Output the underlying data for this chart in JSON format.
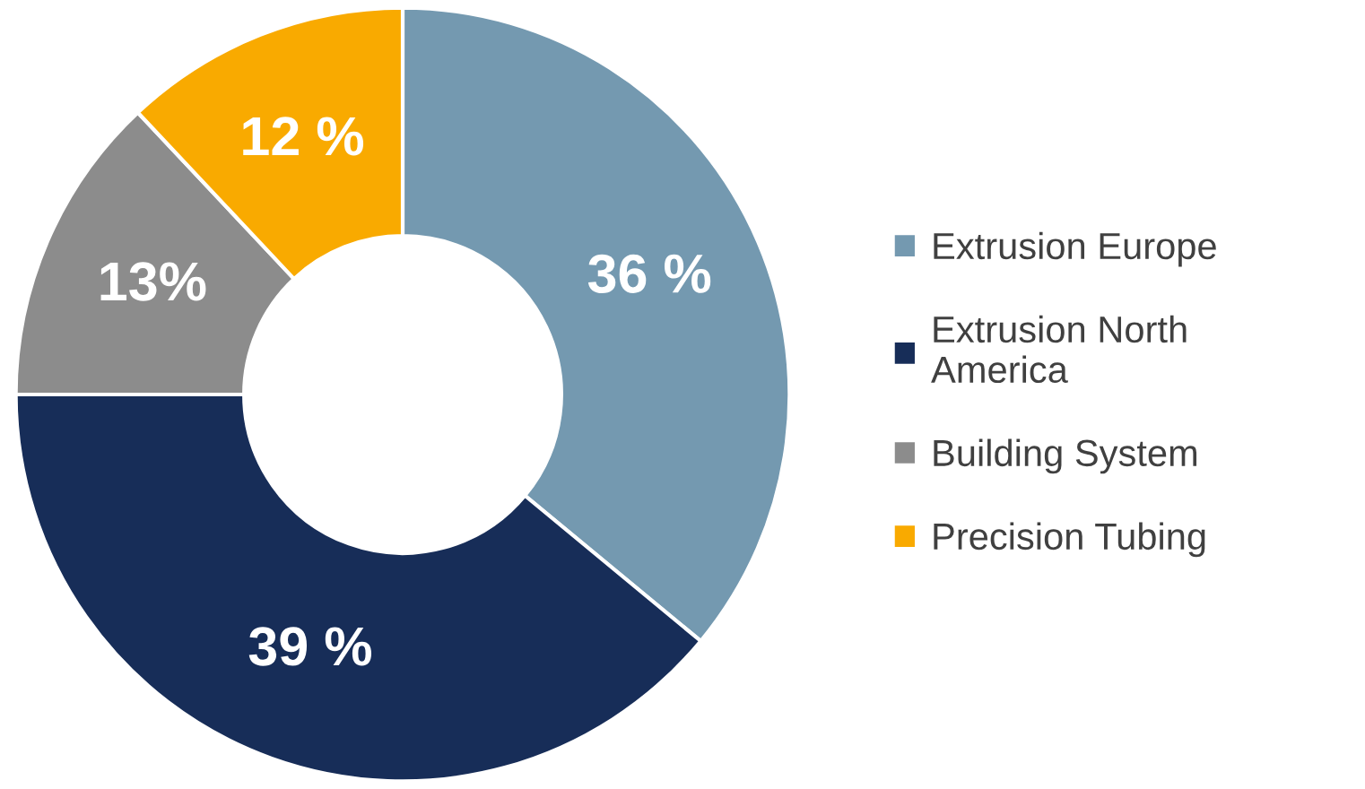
{
  "chart_data": {
    "type": "donut",
    "categories": [
      "Extrusion Europe",
      "Extrusion North\nAmerica",
      "Building System",
      "Precision Tubing"
    ],
    "values": [
      36,
      39,
      13,
      12
    ],
    "colors": [
      "#7499b0",
      "#172d58",
      "#8c8c8c",
      "#f9aa00"
    ],
    "value_labels": [
      "36 %",
      "39 %",
      "13%",
      "12 %"
    ],
    "legend": "right"
  }
}
